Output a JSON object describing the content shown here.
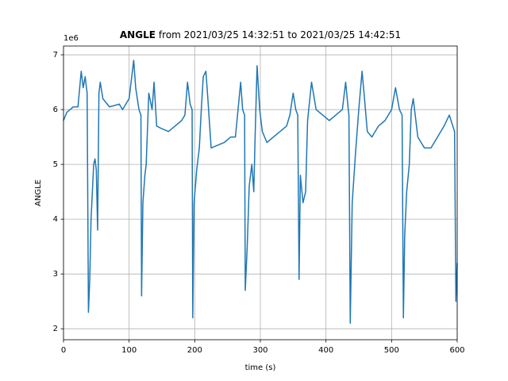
{
  "chart_data": {
    "type": "line",
    "title_parts": [
      "ANGLE",
      "from 2021/03/25 14:32:51 to 2021/03/25 14:42:51"
    ],
    "x_label": "time (s)",
    "y_label": "ANGLE",
    "y_offset_label": "1e6",
    "x": [
      0,
      5,
      10,
      15,
      22,
      27,
      30,
      33,
      36,
      38,
      40,
      42,
      44,
      46,
      48,
      50,
      52,
      54,
      56,
      60,
      70,
      85,
      90,
      100,
      107,
      110,
      115,
      118,
      119,
      121,
      124,
      126,
      130,
      135,
      138,
      142,
      150,
      160,
      170,
      180,
      185,
      189,
      193,
      196,
      197,
      199,
      203,
      207,
      210,
      213,
      217,
      220,
      225,
      235,
      245,
      255,
      262,
      266,
      270,
      273,
      276,
      277,
      280,
      283,
      287,
      290,
      292,
      295,
      299,
      303,
      310,
      320,
      330,
      340,
      345,
      350,
      354,
      357,
      359,
      361,
      365,
      369,
      372,
      378,
      385,
      395,
      405,
      415,
      425,
      430,
      434,
      435,
      437,
      440,
      445,
      450,
      455,
      458,
      463,
      470,
      480,
      490,
      500,
      506,
      512,
      516,
      518,
      520,
      523,
      527,
      530,
      533,
      540,
      550,
      560,
      570,
      580,
      588,
      596,
      598,
      600
    ],
    "series": [
      {
        "color": "#1f77b4",
        "values": [
          5.8,
          5.95,
          6.0,
          6.05,
          6.05,
          6.7,
          6.4,
          6.6,
          6.3,
          2.3,
          2.9,
          4.0,
          4.5,
          5.0,
          5.1,
          4.9,
          3.8,
          6.3,
          6.5,
          6.2,
          6.05,
          6.1,
          6.0,
          6.2,
          6.9,
          6.4,
          6.0,
          5.9,
          2.6,
          4.3,
          4.8,
          5.0,
          6.3,
          6.0,
          6.5,
          5.7,
          5.65,
          5.6,
          5.7,
          5.8,
          5.9,
          6.5,
          6.1,
          6.0,
          2.2,
          4.3,
          4.9,
          5.3,
          6.0,
          6.6,
          6.7,
          6.2,
          5.3,
          5.35,
          5.4,
          5.5,
          5.5,
          6.0,
          6.5,
          6.0,
          5.9,
          2.7,
          3.5,
          4.6,
          5.0,
          4.5,
          5.5,
          6.8,
          6.0,
          5.6,
          5.4,
          5.5,
          5.6,
          5.7,
          5.9,
          6.3,
          6.0,
          5.9,
          2.9,
          4.8,
          4.3,
          4.5,
          5.8,
          6.5,
          6.0,
          5.9,
          5.8,
          5.9,
          6.0,
          6.5,
          6.0,
          5.9,
          2.1,
          4.3,
          5.2,
          6.0,
          6.7,
          6.3,
          5.6,
          5.5,
          5.7,
          5.8,
          6.0,
          6.4,
          6.0,
          5.9,
          2.2,
          3.7,
          4.5,
          5.0,
          6.0,
          6.2,
          5.5,
          5.3,
          5.3,
          5.5,
          5.7,
          5.9,
          5.6,
          2.5,
          3.2
        ]
      }
    ],
    "xlim": [
      0,
      600
    ],
    "xticks": [
      0,
      100,
      200,
      300,
      400,
      500,
      600
    ],
    "ylim": [
      1.8,
      7.16
    ],
    "yticks": [
      2,
      3,
      4,
      5,
      6,
      7
    ],
    "grid": true
  }
}
